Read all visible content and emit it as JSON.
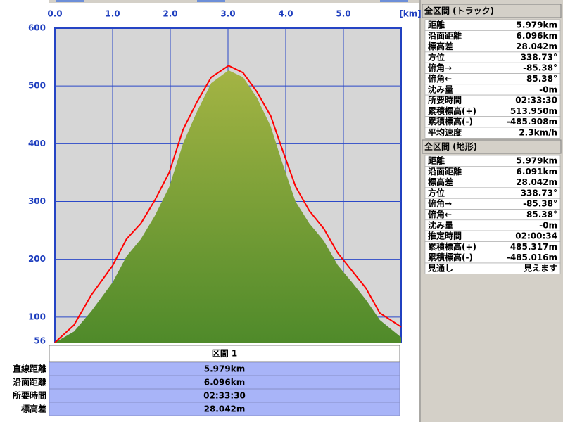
{
  "chart_data": {
    "type": "line",
    "xlabel": "[km]",
    "xlim": [
      0,
      6
    ],
    "xticks": [
      {
        "value": 0,
        "label": "0.0"
      },
      {
        "value": 1,
        "label": "1.0"
      },
      {
        "value": 2,
        "label": "2.0"
      },
      {
        "value": 3,
        "label": "3.0"
      },
      {
        "value": 4,
        "label": "4.0"
      },
      {
        "value": 5,
        "label": "5.0"
      }
    ],
    "ylim": [
      56,
      600
    ],
    "yticks": [
      56,
      100,
      200,
      300,
      400,
      500,
      600
    ],
    "grid": true,
    "x": [
      0,
      0.33,
      0.63,
      1.0,
      1.24,
      1.49,
      1.73,
      1.98,
      2.22,
      2.46,
      2.71,
      3.01,
      3.26,
      3.5,
      3.74,
      3.93,
      4.17,
      4.41,
      4.66,
      4.9,
      5.15,
      5.39,
      5.63,
      6.0
    ],
    "series": [
      {
        "style": "area",
        "color": "#4f8a2a",
        "values": [
          56,
          75,
          110,
          160,
          205,
          235,
          275,
          325,
          400,
          455,
          505,
          527,
          515,
          480,
          430,
          370,
          300,
          262,
          232,
          190,
          160,
          130,
          95,
          65
        ]
      },
      {
        "style": "line",
        "color": "#ff0000",
        "values": [
          56,
          86,
          138,
          189,
          235,
          262,
          302,
          350,
          424,
          472,
          515,
          535,
          523,
          490,
          448,
          393,
          326,
          284,
          253,
          211,
          180,
          150,
          107,
          83
        ]
      }
    ]
  },
  "section_table": {
    "header": "区間 1",
    "rows": [
      {
        "label": "直線距離",
        "value": "5.979km"
      },
      {
        "label": "沿面距離",
        "value": "6.096km"
      },
      {
        "label": "所要時間",
        "value": "02:33:30"
      },
      {
        "label": "標高差",
        "value": "28.042m"
      }
    ]
  },
  "panels": [
    {
      "title": "全区間 (トラック)",
      "rows": [
        {
          "label": "距離",
          "value": "5.979km"
        },
        {
          "label": "沿面距離",
          "value": "6.096km"
        },
        {
          "label": "標高差",
          "value": "28.042m"
        },
        {
          "label": "方位",
          "value": "338.73°"
        },
        {
          "label": "俯角→",
          "value": "-85.38°"
        },
        {
          "label": "俯角←",
          "value": "85.38°"
        },
        {
          "label": "沈み量",
          "value": "-0m"
        },
        {
          "label": "所要時間",
          "value": "02:33:30"
        },
        {
          "label": "累積標高(+)",
          "value": "513.950m"
        },
        {
          "label": "累積標高(-)",
          "value": "-485.908m"
        },
        {
          "label": "平均速度",
          "value": "2.3km/h"
        }
      ]
    },
    {
      "title": "全区間 (地形)",
      "rows": [
        {
          "label": "距離",
          "value": "5.979km"
        },
        {
          "label": "沿面距離",
          "value": "6.091km"
        },
        {
          "label": "標高差",
          "value": "28.042m"
        },
        {
          "label": "方位",
          "value": "338.73°"
        },
        {
          "label": "俯角→",
          "value": "-85.38°"
        },
        {
          "label": "俯角←",
          "value": "85.38°"
        },
        {
          "label": "沈み量",
          "value": "-0m"
        },
        {
          "label": "推定時間",
          "value": "02:00:34"
        },
        {
          "label": "累積標高(+)",
          "value": "485.317m"
        },
        {
          "label": "累積標高(-)",
          "value": "-485.016m"
        },
        {
          "label": "見通し",
          "value": "見えます"
        }
      ]
    }
  ]
}
